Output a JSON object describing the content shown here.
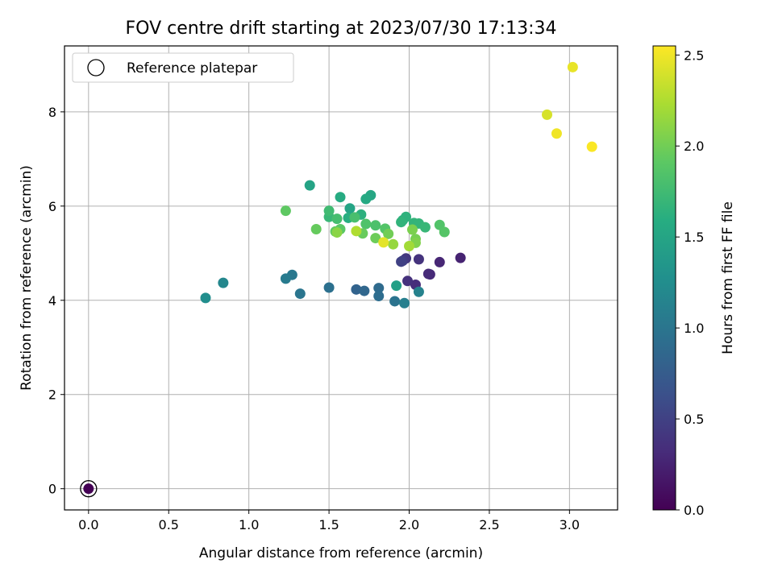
{
  "chart_data": {
    "type": "scatter",
    "title": "FOV centre drift starting at 2023/07/30 17:13:34",
    "xlabel": "Angular distance from reference (arcmin)",
    "ylabel": "Rotation from reference (arcmin)",
    "xlim": [
      -0.15,
      3.3
    ],
    "ylim": [
      -0.45,
      9.4
    ],
    "xticks": [
      "0.0",
      "0.5",
      "1.0",
      "1.5",
      "2.0",
      "2.5",
      "3.0"
    ],
    "yticks": [
      "0",
      "2",
      "4",
      "6",
      "8"
    ],
    "grid": true,
    "legend": {
      "placement": "top-left",
      "entries": [
        "Reference platepar"
      ]
    },
    "colorbar": {
      "label": "Hours from first FF file",
      "colormap": "viridis",
      "range": [
        0,
        2.55
      ],
      "ticks": [
        "0.0",
        "0.5",
        "1.0",
        "1.5",
        "2.0",
        "2.5"
      ]
    },
    "reference_point": {
      "x": 0.0,
      "y": 0.0
    },
    "points": [
      {
        "x": 0.0,
        "y": 0.0,
        "c": 0.0
      },
      {
        "x": 2.32,
        "y": 4.9,
        "c": 0.25
      },
      {
        "x": 2.19,
        "y": 4.81,
        "c": 0.28
      },
      {
        "x": 2.13,
        "y": 4.55,
        "c": 0.3
      },
      {
        "x": 2.12,
        "y": 4.56,
        "c": 0.31
      },
      {
        "x": 2.04,
        "y": 4.33,
        "c": 0.33
      },
      {
        "x": 1.99,
        "y": 4.41,
        "c": 0.36
      },
      {
        "x": 2.06,
        "y": 4.87,
        "c": 0.38
      },
      {
        "x": 1.98,
        "y": 4.89,
        "c": 0.42
      },
      {
        "x": 1.96,
        "y": 4.84,
        "c": 0.46
      },
      {
        "x": 1.95,
        "y": 4.82,
        "c": 0.5
      },
      {
        "x": 1.67,
        "y": 4.23,
        "c": 0.82
      },
      {
        "x": 1.72,
        "y": 4.2,
        "c": 0.86
      },
      {
        "x": 1.81,
        "y": 4.26,
        "c": 0.9
      },
      {
        "x": 1.81,
        "y": 4.09,
        "c": 0.92
      },
      {
        "x": 1.5,
        "y": 4.27,
        "c": 0.95
      },
      {
        "x": 1.91,
        "y": 3.98,
        "c": 0.98
      },
      {
        "x": 1.32,
        "y": 4.14,
        "c": 1.0
      },
      {
        "x": 1.27,
        "y": 4.54,
        "c": 1.03
      },
      {
        "x": 1.23,
        "y": 4.46,
        "c": 1.06
      },
      {
        "x": 1.97,
        "y": 3.94,
        "c": 1.1
      },
      {
        "x": 2.06,
        "y": 4.18,
        "c": 1.13
      },
      {
        "x": 0.84,
        "y": 4.37,
        "c": 1.18
      },
      {
        "x": 0.73,
        "y": 4.05,
        "c": 1.25
      },
      {
        "x": 1.92,
        "y": 4.31,
        "c": 1.45
      },
      {
        "x": 1.38,
        "y": 6.44,
        "c": 1.48
      },
      {
        "x": 1.63,
        "y": 5.95,
        "c": 1.5
      },
      {
        "x": 1.76,
        "y": 6.23,
        "c": 1.52
      },
      {
        "x": 1.73,
        "y": 6.15,
        "c": 1.55
      },
      {
        "x": 1.57,
        "y": 6.19,
        "c": 1.57
      },
      {
        "x": 1.62,
        "y": 5.75,
        "c": 1.6
      },
      {
        "x": 1.7,
        "y": 5.82,
        "c": 1.63
      },
      {
        "x": 1.96,
        "y": 5.7,
        "c": 1.62
      },
      {
        "x": 1.98,
        "y": 5.77,
        "c": 1.64
      },
      {
        "x": 1.95,
        "y": 5.66,
        "c": 1.66
      },
      {
        "x": 2.03,
        "y": 5.64,
        "c": 1.67
      },
      {
        "x": 2.06,
        "y": 5.63,
        "c": 1.68
      },
      {
        "x": 2.1,
        "y": 5.55,
        "c": 1.7
      },
      {
        "x": 1.5,
        "y": 5.77,
        "c": 1.7
      },
      {
        "x": 1.5,
        "y": 5.9,
        "c": 1.75
      },
      {
        "x": 1.55,
        "y": 5.73,
        "c": 1.78
      },
      {
        "x": 1.66,
        "y": 5.76,
        "c": 1.8
      },
      {
        "x": 1.79,
        "y": 5.59,
        "c": 1.82
      },
      {
        "x": 1.73,
        "y": 5.62,
        "c": 1.84
      },
      {
        "x": 1.85,
        "y": 5.52,
        "c": 1.86
      },
      {
        "x": 2.19,
        "y": 5.6,
        "c": 1.85
      },
      {
        "x": 2.22,
        "y": 5.45,
        "c": 1.87
      },
      {
        "x": 1.57,
        "y": 5.51,
        "c": 1.9
      },
      {
        "x": 1.54,
        "y": 5.46,
        "c": 1.93
      },
      {
        "x": 1.42,
        "y": 5.51,
        "c": 1.95
      },
      {
        "x": 1.23,
        "y": 5.9,
        "c": 1.92
      },
      {
        "x": 1.71,
        "y": 5.42,
        "c": 1.96
      },
      {
        "x": 1.79,
        "y": 5.32,
        "c": 1.98
      },
      {
        "x": 1.87,
        "y": 5.41,
        "c": 2.0
      },
      {
        "x": 2.04,
        "y": 5.3,
        "c": 2.02
      },
      {
        "x": 2.02,
        "y": 5.5,
        "c": 2.04
      },
      {
        "x": 2.04,
        "y": 5.22,
        "c": 2.06
      },
      {
        "x": 1.55,
        "y": 5.44,
        "c": 2.1
      },
      {
        "x": 1.9,
        "y": 5.19,
        "c": 2.15
      },
      {
        "x": 2.0,
        "y": 5.15,
        "c": 2.2
      },
      {
        "x": 1.67,
        "y": 5.47,
        "c": 2.25
      },
      {
        "x": 1.84,
        "y": 5.23,
        "c": 2.45
      },
      {
        "x": 2.86,
        "y": 7.94,
        "c": 2.4
      },
      {
        "x": 2.92,
        "y": 7.54,
        "c": 2.5
      },
      {
        "x": 3.02,
        "y": 8.95,
        "c": 2.47
      },
      {
        "x": 3.14,
        "y": 7.26,
        "c": 2.54
      }
    ]
  }
}
